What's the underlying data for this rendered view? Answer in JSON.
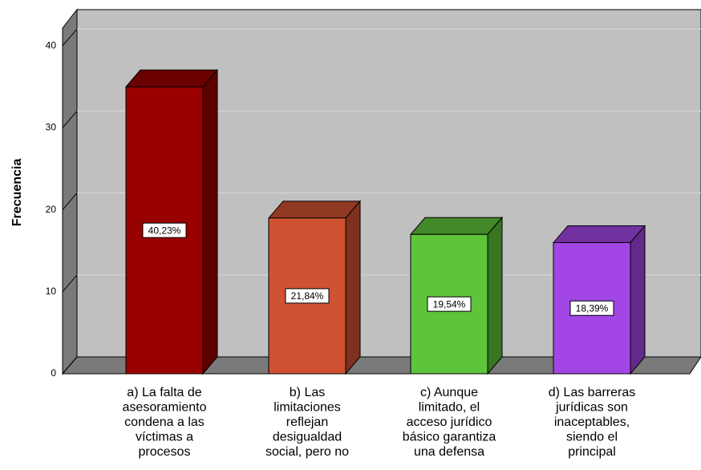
{
  "chart_data": {
    "type": "bar3d",
    "y_label": "Frecuencia",
    "categories": [
      [
        "a) La falta de",
        "asesoramiento",
        "condena a las",
        "víctimas a",
        "procesos"
      ],
      [
        "b) Las",
        "limitaciones",
        "reflejan",
        "desigualdad",
        "social, pero no"
      ],
      [
        "c) Aunque",
        "limitado, el",
        "acceso jurídico",
        "básico garantiza",
        "una defensa"
      ],
      [
        "d) Las barreras",
        "jurídicas son",
        "inaceptables,",
        "siendo el",
        "principal"
      ]
    ],
    "values": [
      35,
      19,
      17,
      16
    ],
    "percent_values": [
      40.23,
      21.84,
      19.54,
      18.39
    ],
    "value_labels": [
      "40,23%",
      "21,84%",
      "19,54%",
      "18,39%"
    ],
    "colors": [
      "#990000",
      "#d05232",
      "#5ec43a",
      "#a346e6"
    ],
    "ylim": [
      0,
      44
    ],
    "yticks": [
      0,
      10,
      20,
      30,
      40
    ],
    "grid": true
  }
}
